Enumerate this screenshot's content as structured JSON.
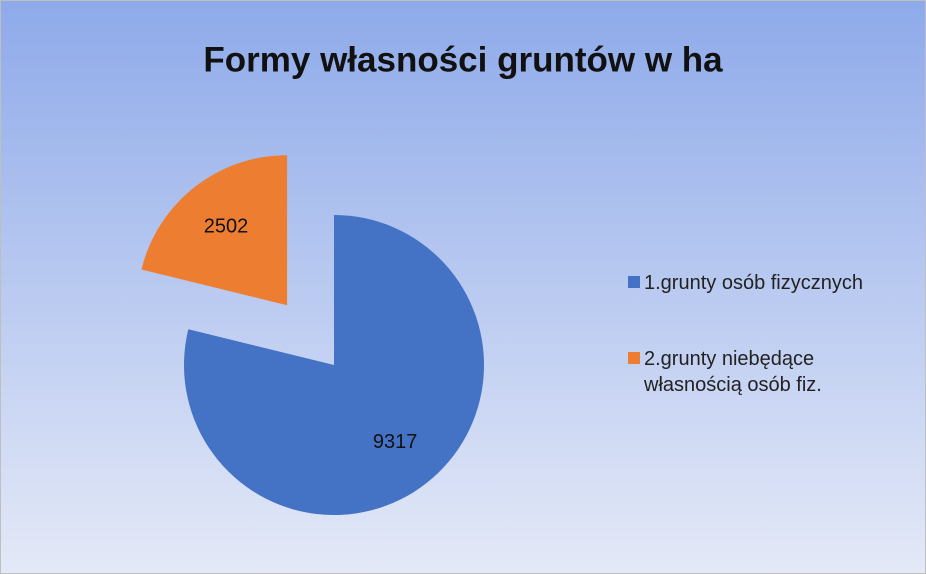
{
  "chart_data": {
    "type": "pie",
    "title": "Formy własności gruntów w ha",
    "categories": [
      "1.grunty osób fizycznych",
      "2.grunty niebędące własnością osób fiz."
    ],
    "values": [
      9317,
      2502
    ],
    "colors": [
      "#4472c4",
      "#ed7d31"
    ]
  }
}
